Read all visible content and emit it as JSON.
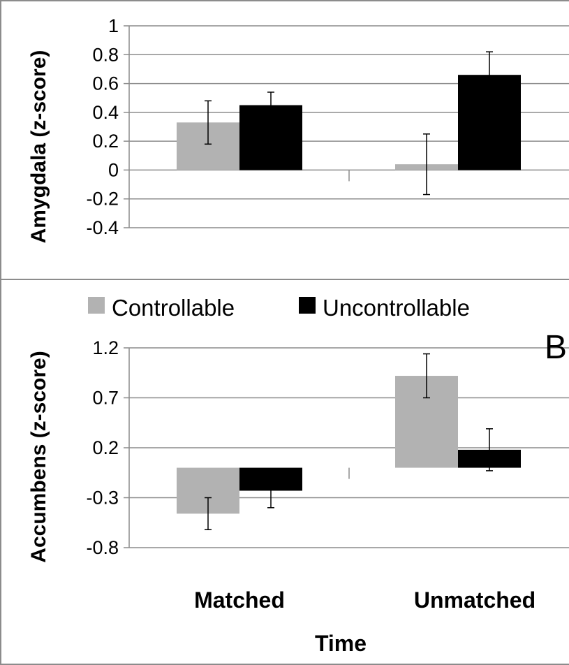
{
  "colors": {
    "controllable": "#b2b2b2",
    "uncontrollable": "#000000",
    "grid": "#8c8c8c",
    "frame": "#8c8c8c",
    "error_bar": "#000000"
  },
  "legend": {
    "position": "top",
    "items": [
      {
        "label": "Controllable"
      },
      {
        "label": "Uncontrollable"
      }
    ]
  },
  "xaxis_title": "Time",
  "chart_data": [
    {
      "type": "bar",
      "title": "",
      "xlabel": "",
      "ylabel": "Amygdala (z-score)",
      "ylim": [
        -0.4,
        1
      ],
      "yticks": [
        "1",
        "0.8",
        "0.6",
        "0.4",
        "0.2",
        "0",
        "-0.2",
        "-0.4"
      ],
      "tick_values": [
        1,
        0.8,
        0.6,
        0.4,
        0.2,
        0,
        -0.2,
        -0.4
      ],
      "grid": true,
      "categories": [
        "Matched",
        "Unmatched"
      ],
      "series": [
        {
          "name": "Controllable",
          "values": [
            0.33,
            0.04
          ],
          "errors": [
            0.15,
            0.21
          ]
        },
        {
          "name": "Uncontrollable",
          "values": [
            0.45,
            0.66
          ],
          "errors": [
            0.09,
            0.16
          ]
        }
      ]
    },
    {
      "type": "bar",
      "title": "",
      "panel_label": "B",
      "xlabel": "Time",
      "ylabel": "Accumbens (z-score)",
      "ylim": [
        -0.8,
        1.2
      ],
      "yticks": [
        "1.2",
        "0.7",
        "0.2",
        "-0.3",
        "-0.8"
      ],
      "tick_values": [
        1.2,
        0.7,
        0.2,
        -0.3,
        -0.8
      ],
      "grid": true,
      "categories": [
        "Matched",
        "Unmatched"
      ],
      "series": [
        {
          "name": "Controllable",
          "values": [
            -0.46,
            0.92
          ],
          "errors": [
            0.16,
            0.22
          ]
        },
        {
          "name": "Uncontrollable",
          "values": [
            -0.23,
            0.18
          ],
          "errors": [
            0.17,
            0.21
          ]
        }
      ]
    }
  ]
}
